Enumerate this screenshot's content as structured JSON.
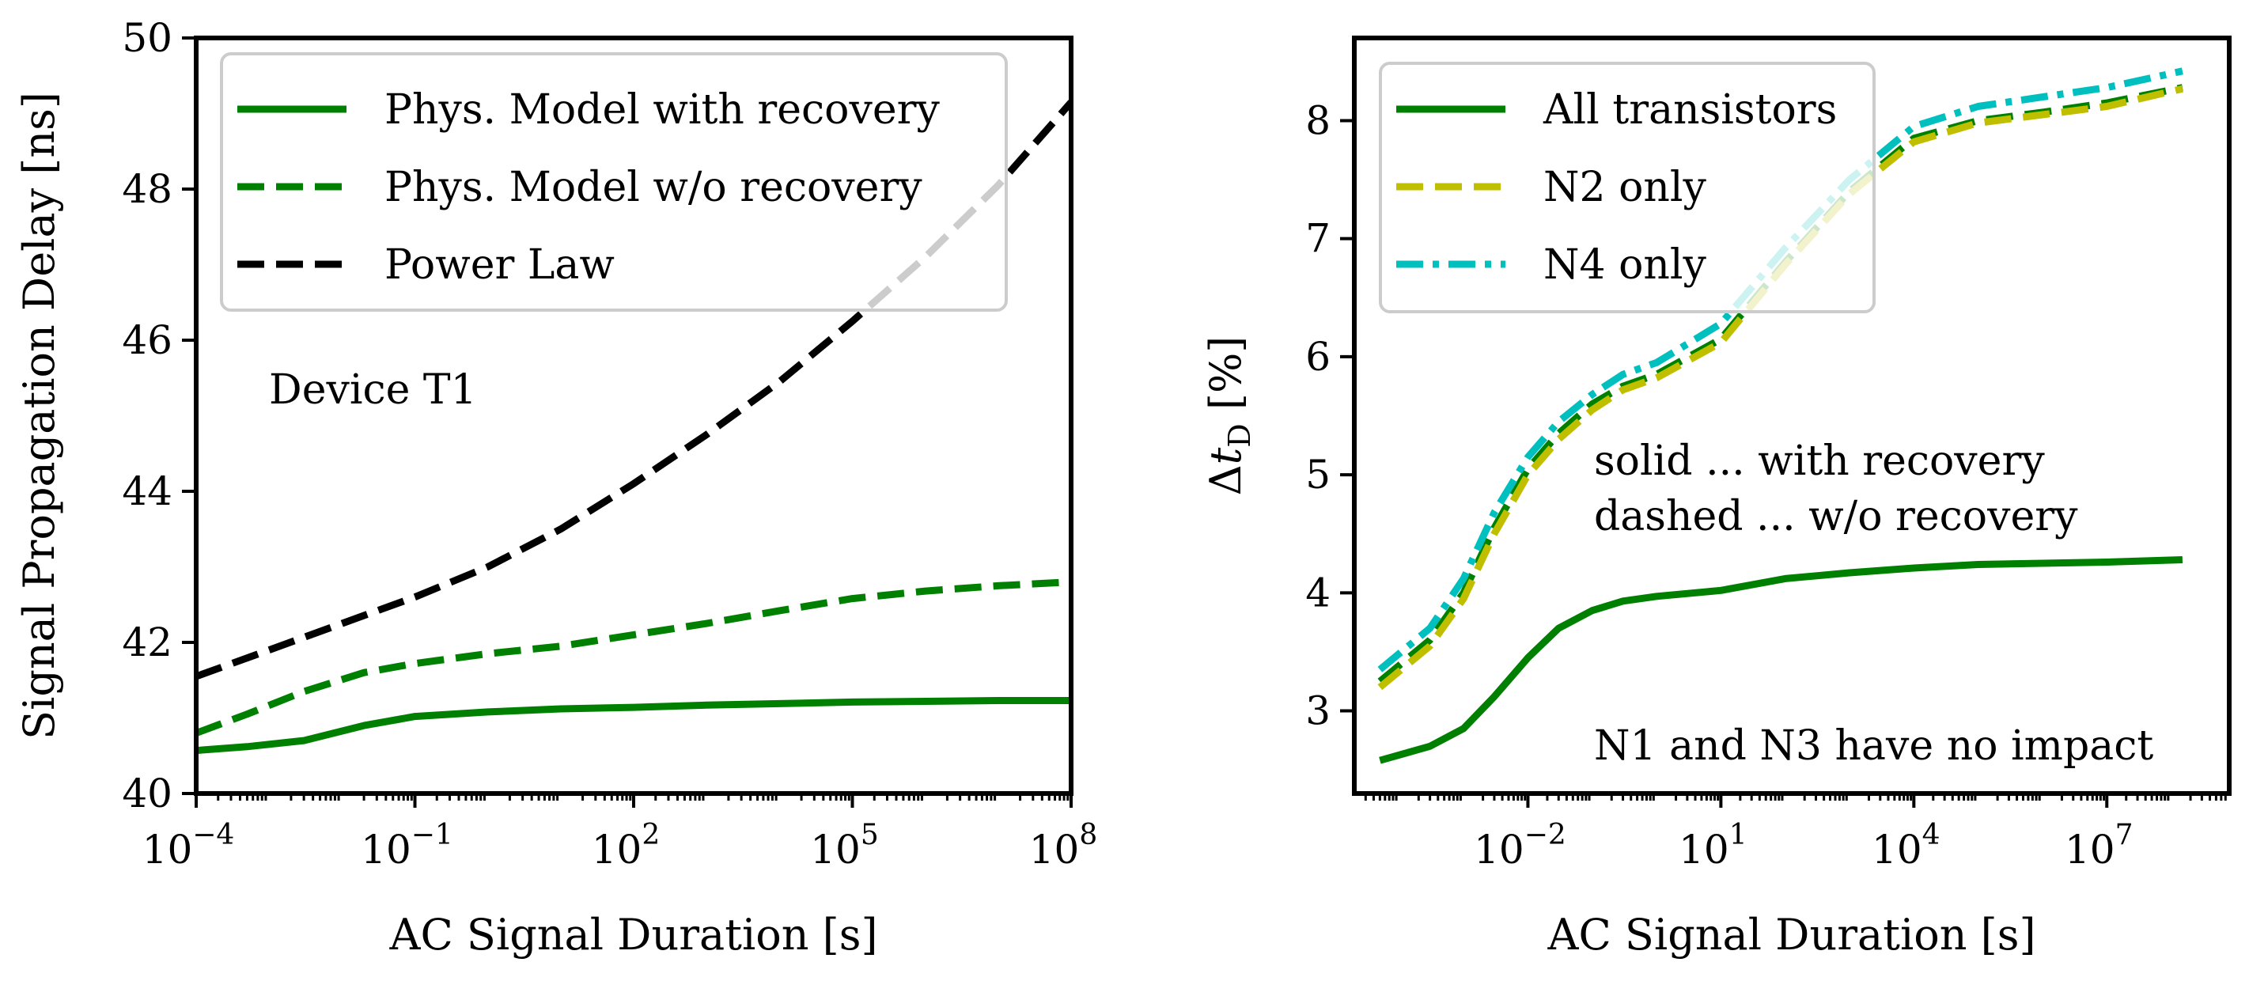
{
  "chart_data": [
    {
      "type": "line",
      "xscale": "log",
      "xlim": [
        0.0001,
        100000000
      ],
      "ylim": [
        40,
        50
      ],
      "xlabel": "AC Signal Duration [s]",
      "ylabel": "Signal Propagation Delay [ns]",
      "xticks": [
        {
          "value": 0.0001,
          "base": "10",
          "exp": "−4"
        },
        {
          "value": 0.1,
          "base": "10",
          "exp": "−1"
        },
        {
          "value": 100,
          "base": "10",
          "exp": "2"
        },
        {
          "value": 100000,
          "base": "10",
          "exp": "5"
        },
        {
          "value": 100000000,
          "base": "10",
          "exp": "8"
        }
      ],
      "yticks": [
        {
          "value": 40,
          "label": "40"
        },
        {
          "value": 42,
          "label": "42"
        },
        {
          "value": 44,
          "label": "44"
        },
        {
          "value": 46,
          "label": "46"
        },
        {
          "value": 48,
          "label": "48"
        },
        {
          "value": 50,
          "label": "50"
        }
      ],
      "annotations": [
        {
          "text": "Device T1",
          "x": 0.003,
          "y": 45.1
        }
      ],
      "legend": {
        "position": "top-left"
      },
      "series": [
        {
          "name": "Phys. Model with recovery",
          "color": "#008000",
          "style": "solid",
          "x": [
            0.0001,
            0.0005,
            0.003,
            0.02,
            0.1,
            1,
            10,
            100,
            1000,
            10000,
            100000,
            1000000,
            10000000,
            100000000
          ],
          "y": [
            40.57,
            40.62,
            40.7,
            40.9,
            41.02,
            41.08,
            41.12,
            41.14,
            41.17,
            41.19,
            41.21,
            41.22,
            41.23,
            41.23
          ]
        },
        {
          "name": "Phys. Model w/o recovery",
          "color": "#008000",
          "style": "dashed",
          "x": [
            0.0001,
            0.0005,
            0.003,
            0.02,
            0.1,
            1,
            10,
            100,
            1000,
            10000,
            100000,
            1000000,
            10000000,
            100000000
          ],
          "y": [
            40.8,
            41.05,
            41.35,
            41.6,
            41.72,
            41.85,
            41.95,
            42.1,
            42.25,
            42.42,
            42.58,
            42.68,
            42.75,
            42.8
          ]
        },
        {
          "name": "Power Law",
          "color": "#000000",
          "style": "dashed",
          "x": [
            0.0001,
            0.001,
            0.01,
            0.1,
            1,
            10,
            100,
            1000,
            10000,
            100000,
            1000000,
            10000000,
            100000000
          ],
          "y": [
            41.55,
            41.9,
            42.25,
            42.6,
            43.0,
            43.5,
            44.1,
            44.75,
            45.45,
            46.25,
            47.1,
            48.05,
            49.15
          ]
        }
      ]
    },
    {
      "type": "line",
      "xscale": "log",
      "xlim": [
        2e-05,
        800000000
      ],
      "ylim": [
        2.3,
        8.7
      ],
      "xlabel": "AC Signal Duration [s]",
      "ylabel_prefix": "Δ",
      "ylabel_var": "t",
      "ylabel_sub": "D",
      "ylabel_suffix": " [%]",
      "xticks": [
        {
          "value": 0.01,
          "base": "10",
          "exp": "−2"
        },
        {
          "value": 10,
          "base": "10",
          "exp": "1"
        },
        {
          "value": 10000,
          "base": "10",
          "exp": "4"
        },
        {
          "value": 10000000,
          "base": "10",
          "exp": "7"
        }
      ],
      "yticks": [
        {
          "value": 3,
          "label": "3"
        },
        {
          "value": 4,
          "label": "4"
        },
        {
          "value": 5,
          "label": "5"
        },
        {
          "value": 6,
          "label": "6"
        },
        {
          "value": 7,
          "label": "7"
        },
        {
          "value": 8,
          "label": "8"
        }
      ],
      "annotations": [
        {
          "text": "solid ... with recovery",
          "x": 0.05,
          "y": 5.0
        },
        {
          "text": "dashed ... w/o recovery",
          "x": 0.05,
          "y": 4.58
        },
        {
          "text": "N1 and N3 have no impact",
          "x": 0.05,
          "y": 2.6
        }
      ],
      "legend": {
        "position": "top-left"
      },
      "series": [
        {
          "name": "All transistors",
          "color": "#008000",
          "style": "solid",
          "x": [
            5e-05,
            0.0003,
            0.001,
            0.003,
            0.01,
            0.03,
            0.1,
            0.3,
            1,
            10,
            100,
            1000,
            10000,
            100000,
            1000000,
            10000000,
            150000000
          ],
          "y": [
            2.58,
            2.7,
            2.85,
            3.12,
            3.45,
            3.7,
            3.85,
            3.93,
            3.97,
            4.02,
            4.12,
            4.17,
            4.21,
            4.24,
            4.25,
            4.26,
            4.28
          ]
        },
        {
          "name": "All transistors (w/o recovery)",
          "legend": false,
          "color": "#008000",
          "style": "dashed",
          "x": [
            5e-05,
            0.0003,
            0.001,
            0.003,
            0.01,
            0.03,
            0.1,
            0.3,
            1,
            10,
            100,
            1000,
            10000,
            100000,
            1000000,
            10000000,
            150000000
          ],
          "y": [
            3.25,
            3.6,
            4.0,
            4.55,
            5.05,
            5.35,
            5.6,
            5.75,
            5.85,
            6.15,
            6.8,
            7.4,
            7.85,
            8.0,
            8.07,
            8.15,
            8.28
          ]
        },
        {
          "name": "N2 only",
          "color": "#bfbf00",
          "style": "dashed",
          "x": [
            5e-05,
            0.0003,
            0.001,
            0.003,
            0.01,
            0.03,
            0.1,
            0.3,
            1,
            10,
            100,
            1000,
            10000,
            100000,
            1000000,
            10000000,
            150000000
          ],
          "y": [
            3.2,
            3.55,
            3.95,
            4.5,
            5.0,
            5.3,
            5.55,
            5.72,
            5.82,
            6.12,
            6.78,
            7.38,
            7.82,
            7.98,
            8.05,
            8.12,
            8.27
          ]
        },
        {
          "name": "N4 only",
          "color": "#00bfbf",
          "style": "dashdot",
          "x": [
            5e-05,
            0.0003,
            0.001,
            0.003,
            0.01,
            0.03,
            0.1,
            0.3,
            1,
            10,
            100,
            1000,
            10000,
            100000,
            1000000,
            10000000,
            150000000
          ],
          "y": [
            3.35,
            3.7,
            4.12,
            4.68,
            5.15,
            5.45,
            5.68,
            5.85,
            5.95,
            6.28,
            6.92,
            7.5,
            7.95,
            8.12,
            8.2,
            8.28,
            8.42
          ]
        }
      ]
    }
  ]
}
